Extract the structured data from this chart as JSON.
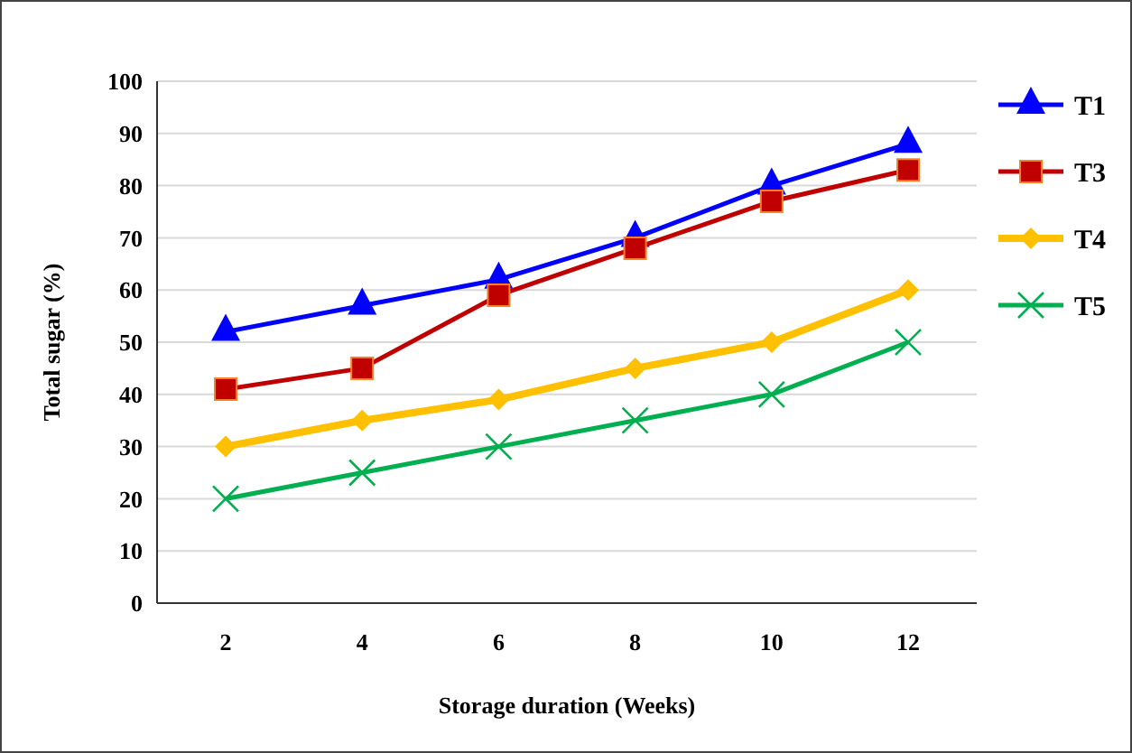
{
  "chart_data": {
    "type": "line",
    "xlabel": "Storage duration  (Weeks)",
    "ylabel": "Total  sugar (%)",
    "categories": [
      "2",
      "4",
      "6",
      "8",
      "10",
      "12"
    ],
    "series": [
      {
        "name": "T1",
        "color": "#0000ff",
        "marker": "triangle",
        "values": [
          52,
          57,
          62,
          70,
          80,
          88
        ]
      },
      {
        "name": "T3",
        "color": "#c00000",
        "marker": "square",
        "values": [
          41,
          45,
          59,
          68,
          77,
          83
        ]
      },
      {
        "name": "T4",
        "color": "#ffc000",
        "marker": "diamond",
        "values": [
          30,
          35,
          39,
          45,
          50,
          60
        ]
      },
      {
        "name": "T5",
        "color": "#00b050",
        "marker": "cross",
        "values": [
          20,
          25,
          30,
          35,
          40,
          50
        ]
      }
    ],
    "ylim": [
      0,
      100
    ],
    "yticks": [
      0,
      10,
      20,
      30,
      40,
      50,
      60,
      70,
      80,
      90,
      100
    ],
    "grid": "y",
    "legend": "right",
    "line_style": "solid"
  }
}
